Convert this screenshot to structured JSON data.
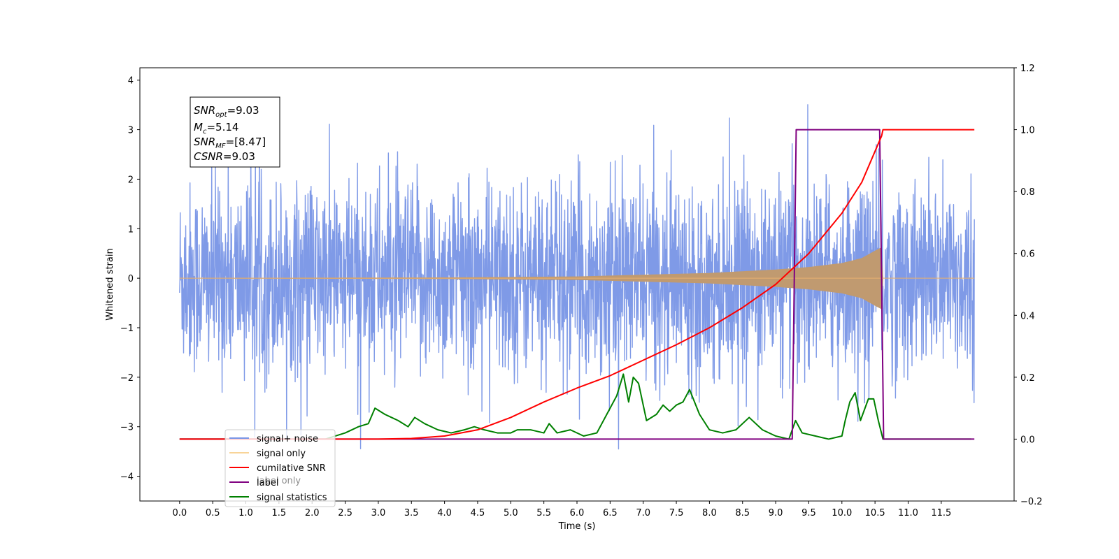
{
  "chart_data": {
    "type": "line",
    "xlabel": "Time (s)",
    "ylabel": "Whitened strain",
    "xlim": [
      -0.6,
      12.6
    ],
    "xticks": [
      "0.0",
      "0.5",
      "1.0",
      "1.5",
      "2.0",
      "2.5",
      "3.0",
      "3.5",
      "4.0",
      "4.5",
      "5.0",
      "5.5",
      "6.0",
      "6.5",
      "7.0",
      "7.5",
      "8.0",
      "8.5",
      "9.0",
      "9.5",
      "10.0",
      "10.5",
      "11.0",
      "11.5"
    ],
    "ylim_left": [
      -4.5,
      4.25
    ],
    "yticks_left": [
      "−4",
      "−3",
      "−2",
      "−1",
      "0",
      "1",
      "2",
      "3",
      "4"
    ],
    "ylim_right": [
      -0.2,
      1.2
    ],
    "yticks_right": [
      "−0.2",
      "0.0",
      "0.2",
      "0.4",
      "0.6",
      "0.8",
      "1.0",
      "1.2"
    ],
    "annotation": {
      "snr_opt": "=9.03",
      "mc": "=5.14",
      "snr_mf": "=[8.47]",
      "csnr": "=9.03"
    },
    "legend": {
      "placement": "lower-left",
      "entries": [
        {
          "label": "signal+ noise",
          "color": "#7895e6"
        },
        {
          "label": "signal only",
          "color": "#f5b955"
        },
        {
          "label": "cumilative SNR",
          "color": "#ff0000"
        },
        {
          "label": "label",
          "color": "#800080"
        },
        {
          "label": "signal statistics",
          "color": "#008000"
        }
      ],
      "hidden_text": "label only"
    },
    "series": [
      {
        "name": "signal+ noise",
        "axis": "left",
        "color": "#7895e6",
        "x_range": [
          0.0,
          12.0
        ],
        "envelope_typical": 1.8,
        "spike_max": 3.85,
        "spike_min": -3.45
      },
      {
        "name": "signal only",
        "axis": "left",
        "color": "#c09a70",
        "amplitude_points": [
          [
            0.0,
            0.0
          ],
          [
            4.0,
            0.01
          ],
          [
            6.0,
            0.03
          ],
          [
            8.0,
            0.1
          ],
          [
            9.0,
            0.17
          ],
          [
            9.5,
            0.22
          ],
          [
            10.0,
            0.3
          ],
          [
            10.3,
            0.4
          ],
          [
            10.5,
            0.55
          ],
          [
            10.6,
            0.62
          ],
          [
            10.62,
            0.0
          ],
          [
            12.0,
            0.0
          ]
        ]
      },
      {
        "name": "cumilative SNR",
        "axis": "right",
        "color": "#ff0000",
        "x": [
          0.0,
          3.0,
          3.5,
          4.0,
          4.5,
          5.0,
          5.5,
          6.0,
          6.5,
          7.0,
          7.5,
          8.0,
          8.5,
          9.0,
          9.5,
          10.0,
          10.3,
          10.5,
          10.6,
          10.62,
          12.0
        ],
        "y": [
          0.0,
          0.0,
          0.002,
          0.01,
          0.03,
          0.07,
          0.12,
          0.165,
          0.205,
          0.255,
          0.305,
          0.36,
          0.425,
          0.5,
          0.6,
          0.73,
          0.83,
          0.93,
          0.98,
          1.0,
          1.0
        ]
      },
      {
        "name": "label",
        "axis": "right",
        "color": "#800080",
        "x": [
          0.0,
          9.25,
          9.31,
          10.57,
          10.63,
          12.0
        ],
        "y": [
          0.0,
          0.0,
          1.0,
          1.0,
          0.0,
          0.0
        ]
      },
      {
        "name": "signal statistics",
        "axis": "right",
        "color": "#008000",
        "x": [
          0.0,
          2.2,
          2.5,
          2.7,
          2.85,
          2.95,
          3.1,
          3.2,
          3.3,
          3.45,
          3.55,
          3.7,
          3.9,
          4.1,
          4.3,
          4.45,
          4.6,
          4.8,
          5.0,
          5.1,
          5.3,
          5.5,
          5.58,
          5.7,
          5.9,
          6.1,
          6.3,
          6.5,
          6.6,
          6.7,
          6.78,
          6.85,
          6.93,
          7.05,
          7.2,
          7.3,
          7.4,
          7.5,
          7.6,
          7.7,
          7.85,
          8.0,
          8.2,
          8.4,
          8.6,
          8.8,
          9.0,
          9.2,
          9.3,
          9.4,
          9.6,
          9.8,
          10.0,
          10.05,
          10.12,
          10.2,
          10.28,
          10.4,
          10.48,
          10.55,
          10.62,
          10.8,
          11.0,
          11.5,
          11.95
        ],
        "y": [
          0.0,
          0.0,
          0.02,
          0.04,
          0.05,
          0.1,
          0.08,
          0.07,
          0.06,
          0.04,
          0.07,
          0.05,
          0.03,
          0.02,
          0.03,
          0.04,
          0.03,
          0.02,
          0.02,
          0.03,
          0.03,
          0.02,
          0.05,
          0.02,
          0.03,
          0.01,
          0.02,
          0.1,
          0.14,
          0.21,
          0.12,
          0.2,
          0.18,
          0.06,
          0.08,
          0.11,
          0.09,
          0.11,
          0.12,
          0.16,
          0.08,
          0.03,
          0.02,
          0.03,
          0.07,
          0.03,
          0.01,
          0.0,
          0.06,
          0.02,
          0.01,
          0.0,
          0.01,
          0.06,
          0.12,
          0.15,
          0.06,
          0.13,
          0.13,
          0.06,
          0.0,
          0.0,
          0.0,
          0.0,
          0.0
        ]
      }
    ]
  }
}
